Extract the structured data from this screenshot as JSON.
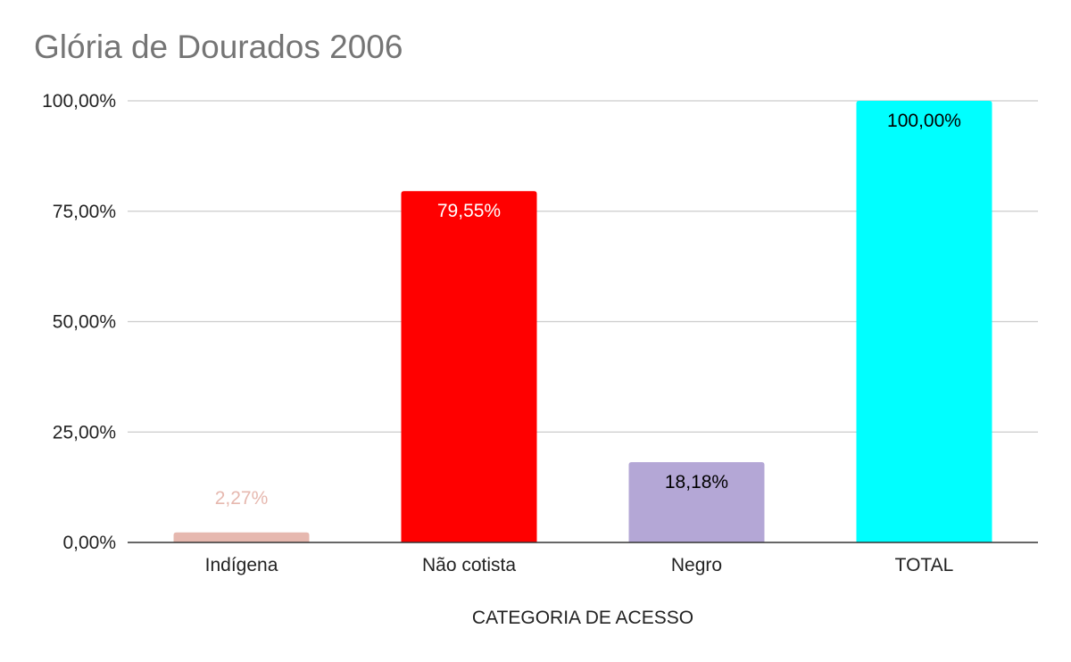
{
  "chart_data": {
    "type": "bar",
    "title": "Glória de Dourados 2006",
    "xlabel": "CATEGORIA DE ACESSO",
    "ylabel": "",
    "ylim": [
      0,
      100
    ],
    "y_ticks": [
      0,
      25,
      50,
      75,
      100
    ],
    "y_tick_labels": [
      "0,00%",
      "25,00%",
      "50,00%",
      "75,00%",
      "100,00%"
    ],
    "categories": [
      "Indígena",
      "Não cotista",
      "Negro",
      "TOTAL"
    ],
    "values": [
      2.27,
      79.55,
      18.18,
      100.0
    ],
    "data_labels": [
      "2,27%",
      "79,55%",
      "18,18%",
      "100,00%"
    ],
    "bar_colors": [
      "#e6b8af",
      "#ff0000",
      "#b4a7d6",
      "#00ffff"
    ],
    "label_colors": [
      "#e6b8af",
      "#ffffff",
      "#000000",
      "#000000"
    ],
    "grid": true,
    "legend": "none"
  }
}
